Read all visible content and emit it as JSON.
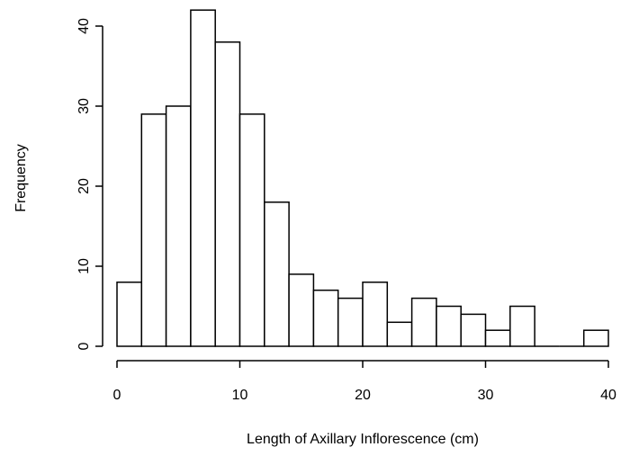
{
  "chart_data": {
    "type": "bar",
    "subtype": "histogram",
    "title": "",
    "xlabel": "Length of Axillary Inflorescence (cm)",
    "ylabel": "Frequency",
    "bin_edges": [
      0,
      2,
      4,
      6,
      8,
      10,
      12,
      14,
      16,
      18,
      20,
      22,
      24,
      26,
      28,
      30,
      32,
      34,
      36,
      38,
      40
    ],
    "values": [
      8,
      29,
      30,
      42,
      38,
      29,
      18,
      9,
      7,
      6,
      8,
      3,
      6,
      5,
      4,
      2,
      5,
      0,
      0,
      2
    ],
    "xlim": [
      0,
      40
    ],
    "ylim": [
      0,
      42
    ],
    "xticks": [
      0,
      10,
      20,
      30,
      40
    ],
    "yticks": [
      0,
      10,
      20,
      30,
      40
    ],
    "x_tick_labels": [
      "0",
      "10",
      "20",
      "30",
      "40"
    ],
    "y_tick_labels": [
      "0",
      "10",
      "20",
      "30",
      "40"
    ],
    "grid": false,
    "bar_fill": "#ffffff",
    "bar_stroke": "#000000"
  }
}
